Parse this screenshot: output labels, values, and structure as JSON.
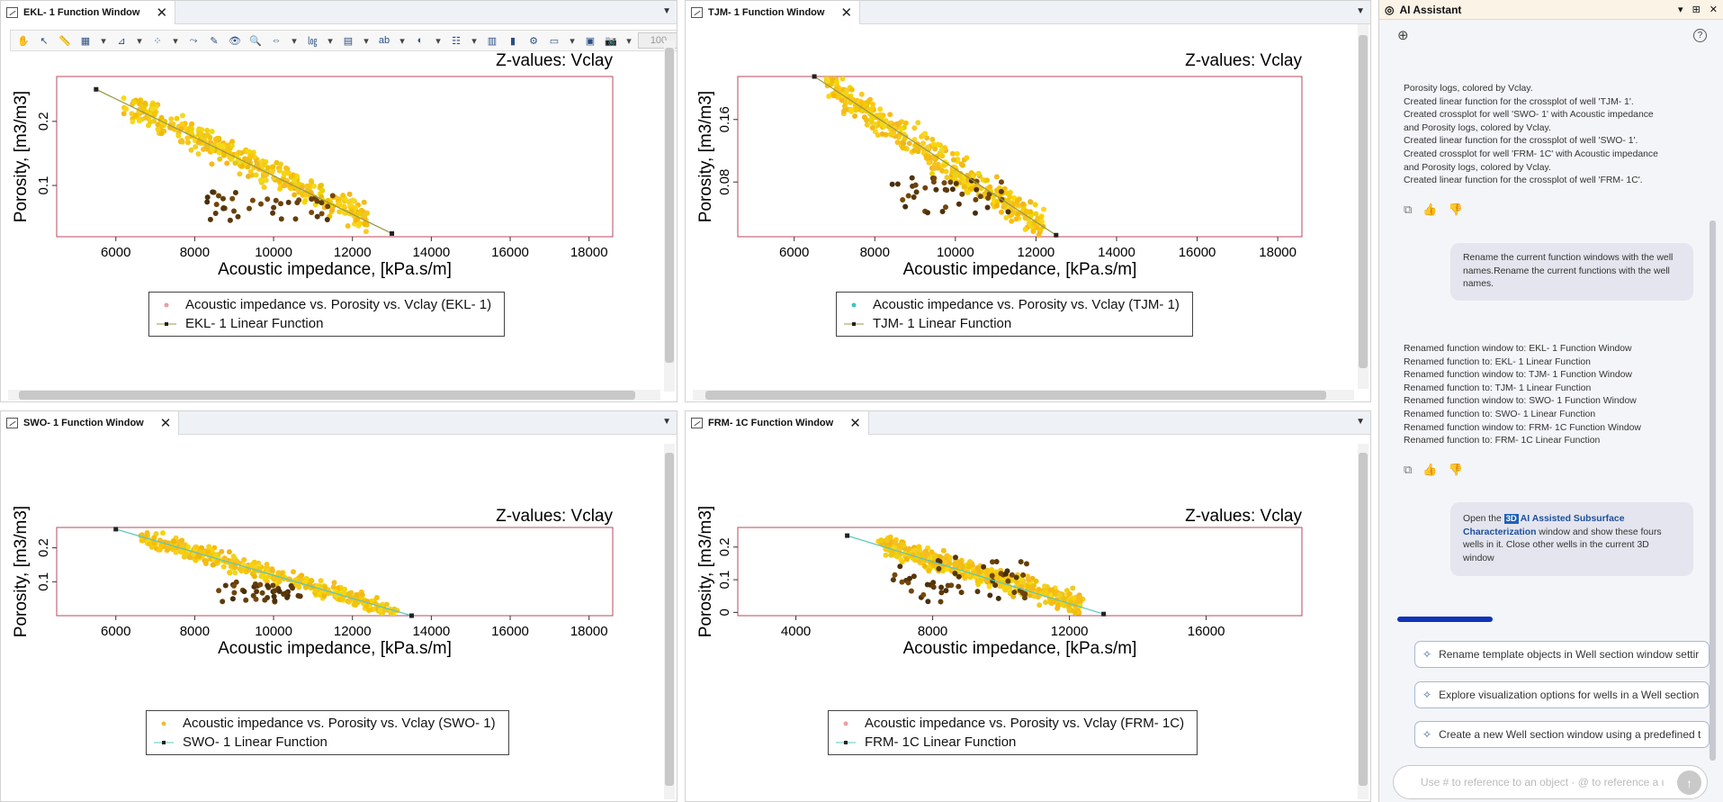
{
  "windows": [
    {
      "id": "ekl",
      "tab_label": "EKL-  1 Function Window",
      "close_glyph": "✕",
      "has_toolbar": true,
      "zoom_value": "100",
      "z_label": "Z-values: Vclay",
      "legend": [
        {
          "label": "Acoustic impedance vs. Porosity vs. Vclay (EKL-  1)"
        },
        {
          "label": "EKL-  1 Linear Function"
        }
      ]
    },
    {
      "id": "tjm",
      "tab_label": "TJM-  1 Function Window",
      "close_glyph": "✕",
      "has_toolbar": false,
      "z_label": "Z-values: Vclay",
      "legend": [
        {
          "label": "Acoustic impedance vs. Porosity vs. Vclay (TJM-  1)"
        },
        {
          "label": "TJM-  1 Linear Function"
        }
      ]
    },
    {
      "id": "swo",
      "tab_label": "SWO-  1 Function Window",
      "close_glyph": "✕",
      "has_toolbar": false,
      "z_label": "Z-values: Vclay",
      "legend": [
        {
          "label": "Acoustic impedance vs. Porosity vs. Vclay (SWO-  1)"
        },
        {
          "label": "SWO-  1 Linear Function"
        }
      ]
    },
    {
      "id": "frm",
      "tab_label": "FRM-  1C Function Window",
      "close_glyph": "✕",
      "has_toolbar": false,
      "z_label": "Z-values: Vclay",
      "legend": [
        {
          "label": "Acoustic impedance vs. Porosity vs. Vclay (FRM-  1C)"
        },
        {
          "label": "FRM-  1C Linear Function"
        }
      ]
    }
  ],
  "chart_data": [
    {
      "type": "scatter",
      "well": "EKL-  1",
      "xlabel": "Acoustic impedance, [kPa.s/m]",
      "ylabel": "Porosity, [m3/m3]",
      "xticks": [
        "6000",
        "8000",
        "10000",
        "12000",
        "14000",
        "16000",
        "18000"
      ],
      "yticks": [
        "0.1",
        "0.2"
      ],
      "xlim": [
        4500,
        18600
      ],
      "ylim": [
        0.02,
        0.27
      ],
      "line": {
        "x": [
          5500,
          13000
        ],
        "y": [
          0.25,
          0.025
        ],
        "color": "#9a9a4a"
      },
      "cloud": {
        "seed": 11,
        "x_range": [
          6200,
          12400
        ],
        "a": 0.25,
        "b": 2.95e-05,
        "x0": 5500,
        "spread": 0.022,
        "count": 420
      },
      "dark": {
        "x_range": [
          8300,
          11600
        ],
        "y_range": [
          0.045,
          0.09
        ],
        "count": 40
      },
      "marker_color": "#e8a0a0"
    },
    {
      "type": "scatter",
      "well": "TJM-  1",
      "xlabel": "Acoustic impedance, [kPa.s/m]",
      "ylabel": "Porosity, [m3/m3]",
      "xticks": [
        "6000",
        "8000",
        "10000",
        "12000",
        "14000",
        "16000",
        "18000"
      ],
      "yticks": [
        "0.08",
        "0.16"
      ],
      "xlim": [
        4600,
        18600
      ],
      "ylim": [
        0.01,
        0.215
      ],
      "line": {
        "x": [
          6500,
          12500
        ],
        "y": [
          0.215,
          0.012
        ],
        "color": "#9a9a4a"
      },
      "cloud": {
        "seed": 23,
        "x_range": [
          6800,
          12200
        ],
        "a": 0.215,
        "b": 3.38e-05,
        "x0": 6500,
        "spread": 0.02,
        "count": 420
      },
      "dark": {
        "x_range": [
          8400,
          11400
        ],
        "y_range": [
          0.04,
          0.09
        ],
        "count": 40
      },
      "marker_color": "#3fc4c4"
    },
    {
      "type": "scatter",
      "well": "SWO-  1",
      "xlabel": "Acoustic impedance, [kPa.s/m]",
      "ylabel": "Porosity, [m3/m3]",
      "xticks": [
        "6000",
        "8000",
        "10000",
        "12000",
        "14000",
        "16000",
        "18000"
      ],
      "yticks": [
        "0.1",
        "0.2"
      ],
      "xlim": [
        4500,
        18600
      ],
      "ylim": [
        0.0,
        0.26
      ],
      "line": {
        "x": [
          6000,
          13500
        ],
        "y": [
          0.255,
          0.0
        ],
        "color": "#5cc7c0"
      },
      "cloud": {
        "seed": 37,
        "x_range": [
          6600,
          13200
        ],
        "a": 0.255,
        "b": 3.4e-05,
        "x0": 6000,
        "spread": 0.024,
        "count": 420
      },
      "dark": {
        "x_range": [
          8600,
          10800
        ],
        "y_range": [
          0.04,
          0.1
        ],
        "count": 40
      },
      "marker_color": "#e8c040"
    },
    {
      "type": "scatter",
      "well": "FRM-  1C",
      "xlabel": "Acoustic impedance, [kPa.s/m]",
      "ylabel": "Porosity, [m3/m3]",
      "xticks": [
        "4000",
        "8000",
        "12000",
        "16000"
      ],
      "yticks": [
        "0",
        "0.1",
        "0.2"
      ],
      "xlim": [
        2300,
        18800
      ],
      "ylim": [
        -0.01,
        0.26
      ],
      "line": {
        "x": [
          5500,
          13000
        ],
        "y": [
          0.235,
          -0.005
        ],
        "color": "#5cc7c0"
      },
      "cloud": {
        "seed": 53,
        "x_range": [
          6400,
          12400
        ],
        "a": 0.24,
        "b": 3.15e-05,
        "x0": 5500,
        "spread": 0.03,
        "count": 480
      },
      "dark": {
        "x_range": [
          6800,
          10800
        ],
        "y_range": [
          0.03,
          0.17
        ],
        "count": 55
      },
      "marker_color": "#e8a0a0"
    }
  ],
  "ai": {
    "title": "AI Assistant",
    "controls": {
      "dropdown": "▾",
      "pin": "⊞",
      "close": "✕"
    },
    "new_chat_icon": "⊕",
    "help_icon": "?",
    "msg1_lines": [
      "Porosity logs, colored by Vclay.",
      "Created linear function for the crossplot of well 'TJM- 1'.",
      "Created crossplot for well 'SWO- 1' with Acoustic impedance",
      "and Porosity logs, colored by Vclay.",
      "Created linear function for the crossplot of well 'SWO- 1'.",
      "Created crossplot for well 'FRM- 1C' with Acoustic impedance",
      "and Porosity logs, colored by Vclay.",
      "Created linear function for the crossplot of well 'FRM- 1C'."
    ],
    "user1": "Rename the current function windows with the well names.Rename the current functions with the well names.",
    "msg2_lines": [
      "Renamed function window to: EKL- 1 Function Window",
      "Renamed function to: EKL- 1 Linear Function",
      "Renamed function window to: TJM- 1 Function Window",
      "Renamed function to: TJM- 1 Linear Function",
      "Renamed function window to: SWO- 1 Function Window",
      "Renamed function to: SWO- 1 Linear Function",
      "Renamed function window to: FRM- 1C Function Window",
      "Renamed function to: FRM- 1C Linear Function"
    ],
    "user2": {
      "pre": "Open the ",
      "badge": "3D",
      "bold": "AI Assisted Subsurface Characterization",
      "post": " window and show these fours wells in it. Close other wells in the current 3D window"
    },
    "suggestions": [
      "Rename template objects in Well section window settir",
      "Explore visualization options for wells in a Well section",
      "Create a new Well section window using a predefined t"
    ],
    "input_placeholder": "Use # to reference to an object · @ to reference a us",
    "send_glyph": "↑"
  }
}
